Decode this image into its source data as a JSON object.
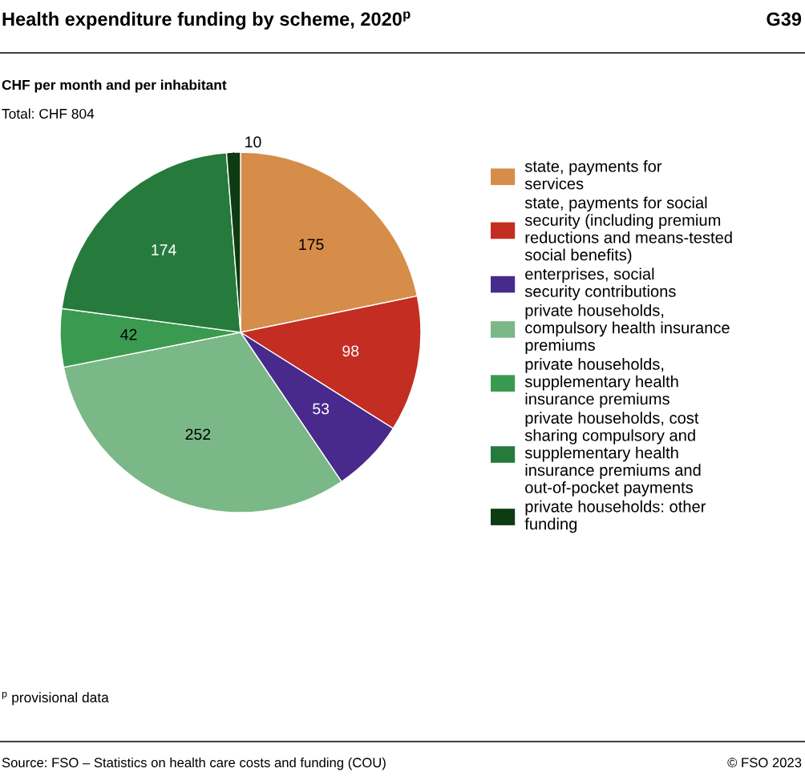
{
  "chart_data": {
    "type": "pie",
    "title": "Health expenditure funding by scheme, 2020$^{p}$",
    "subtitle": "CHF per month and per inhabitant",
    "annotations": [
      "G39",
      "Total: CHF 804",
      "$^{p}$ provisional data",
      "Source: FSO – Statistics on health care costs and funding (COU)",
      "© FSO 2023"
    ],
    "categories": [
      "state, payments for services",
      "state, payments for social security (including premium reductions and means-tested social benefits)",
      "enterprises, social security contributions",
      "private households, compulsory health insurance premiums",
      "private households, supplementary health insurance premiums",
      "private households, cost sharing compulsory and supplementary health insurance premiums and out-of-pocket payments",
      "private households: other funding"
    ],
    "values": [
      175,
      98,
      53,
      252,
      42,
      174,
      10
    ],
    "colors": [
      "#d68d4a",
      "#c42d22",
      "#472a8c",
      "#7ab887",
      "#3a9b50",
      "#267a3b",
      "#0d3b12"
    ],
    "data_labels": true,
    "legend": "right"
  }
}
